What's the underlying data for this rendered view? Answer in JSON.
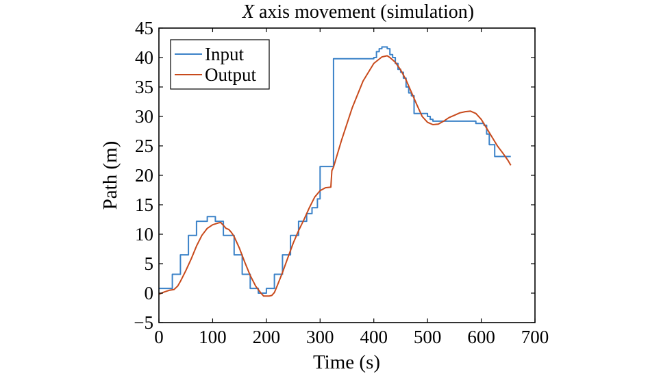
{
  "chart_data": {
    "type": "line",
    "title": {
      "prefix": "X",
      "rest": " axis movement (simulation)"
    },
    "xlabel": "Time (s)",
    "ylabel": "Path (m)",
    "xlim": [
      0,
      700
    ],
    "ylim": [
      -5,
      45
    ],
    "xticks": [
      0,
      100,
      200,
      300,
      400,
      500,
      600,
      700
    ],
    "yticks": [
      -5,
      0,
      5,
      10,
      15,
      20,
      25,
      30,
      35,
      40,
      45
    ],
    "xtick_labels": [
      "0",
      "100",
      "200",
      "300",
      "400",
      "500",
      "600",
      "700"
    ],
    "ytick_labels": [
      "−5",
      "0",
      "5",
      "10",
      "15",
      "20",
      "25",
      "30",
      "35",
      "40",
      "45"
    ],
    "grid": false,
    "legend_position": "top-left",
    "series": [
      {
        "name": "Input",
        "color": "#3b82c8",
        "style": "step",
        "x": [
          0,
          25,
          40,
          55,
          70,
          90,
          105,
          120,
          140,
          155,
          170,
          185,
          200,
          215,
          230,
          245,
          260,
          275,
          285,
          295,
          300,
          325,
          400,
          405,
          410,
          415,
          420,
          425,
          430,
          435,
          440,
          445,
          450,
          455,
          460,
          465,
          470,
          475,
          480,
          500,
          505,
          510,
          540,
          590,
          605,
          610,
          615,
          625,
          630,
          655
        ],
        "y": [
          0.8,
          3.2,
          6.5,
          9.8,
          12.2,
          13.0,
          12.2,
          9.8,
          6.5,
          3.2,
          0.8,
          0.0,
          0.8,
          3.2,
          6.5,
          9.8,
          12.2,
          13.5,
          14.5,
          16.0,
          21.5,
          39.8,
          40.0,
          41.0,
          41.5,
          41.8,
          41.8,
          41.5,
          40.5,
          40.0,
          39.0,
          38.0,
          37.5,
          36.5,
          35.0,
          34.0,
          33.5,
          30.5,
          30.5,
          30.0,
          29.5,
          29.2,
          29.2,
          28.8,
          28.5,
          27.0,
          25.2,
          23.2,
          23.2,
          23.2
        ]
      },
      {
        "name": "Output",
        "color": "#c84a1c",
        "style": "line",
        "x": [
          0,
          10,
          20,
          28,
          35,
          40,
          50,
          60,
          70,
          80,
          90,
          100,
          110,
          115,
          120,
          125,
          130,
          135,
          140,
          150,
          160,
          170,
          180,
          190,
          195,
          200,
          205,
          210,
          215,
          220,
          230,
          240,
          250,
          260,
          270,
          280,
          290,
          300,
          310,
          320,
          322,
          325,
          340,
          360,
          380,
          400,
          415,
          425,
          430,
          440,
          450,
          460,
          470,
          480,
          490,
          500,
          510,
          520,
          530,
          540,
          550,
          560,
          570,
          580,
          590,
          600,
          610,
          620,
          630,
          640,
          650,
          655
        ],
        "y": [
          -0.2,
          0.2,
          0.5,
          0.6,
          1.2,
          2.0,
          3.8,
          5.8,
          8.0,
          9.8,
          11.0,
          11.6,
          11.9,
          12.0,
          11.5,
          11.0,
          10.8,
          10.3,
          9.6,
          7.6,
          5.2,
          3.0,
          1.2,
          0.0,
          -0.5,
          -0.5,
          -0.5,
          -0.4,
          0.1,
          1.2,
          3.5,
          6.0,
          8.5,
          10.6,
          12.5,
          14.5,
          16.3,
          17.4,
          17.9,
          18.0,
          20.8,
          21.4,
          26.0,
          31.5,
          36.0,
          39.0,
          40.1,
          40.3,
          40.0,
          39.2,
          37.9,
          36.2,
          34.1,
          32.0,
          30.0,
          29.0,
          28.6,
          28.7,
          29.2,
          29.8,
          30.2,
          30.6,
          30.8,
          30.9,
          30.5,
          29.5,
          28.0,
          26.5,
          25.0,
          23.8,
          22.5,
          21.7
        ]
      }
    ]
  }
}
